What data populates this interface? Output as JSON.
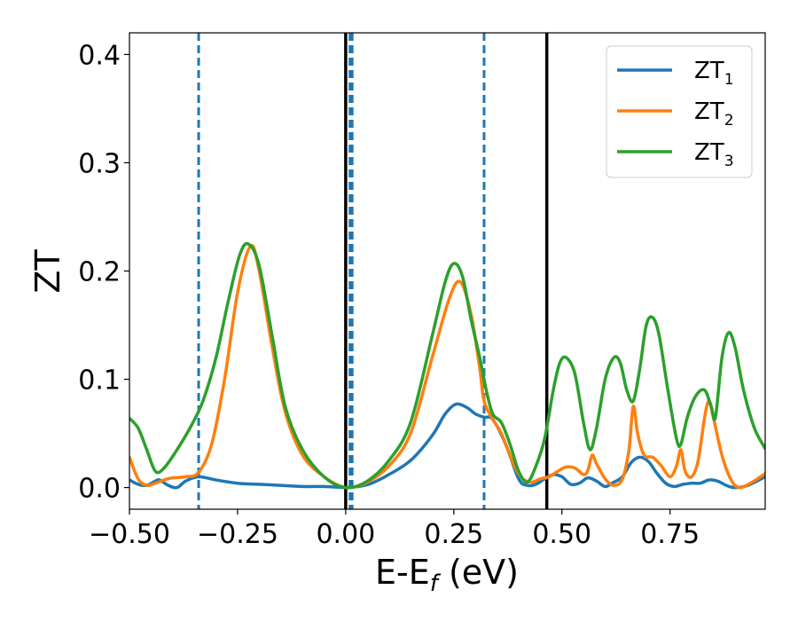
{
  "chart_data": {
    "type": "line",
    "xlabel": "E-E",
    "xlabel_sub": "f",
    "xlabel_unit": " (eV)",
    "ylabel": "ZT",
    "xlim": [
      -0.5,
      0.97
    ],
    "ylim": [
      -0.02,
      0.42
    ],
    "x_ticks": [
      -0.5,
      -0.25,
      0.0,
      0.25,
      0.5,
      0.75
    ],
    "x_tick_labels": [
      "−0.50",
      "−0.25",
      "0.00",
      "0.25",
      "0.50",
      "0.75"
    ],
    "y_ticks": [
      0.0,
      0.1,
      0.2,
      0.3,
      0.4
    ],
    "y_tick_labels": [
      "0.0",
      "0.1",
      "0.2",
      "0.3",
      "0.4"
    ],
    "legend_position": "top-right",
    "grid": false,
    "vlines_dashed": {
      "color": "#1f77b4",
      "x": [
        -0.34,
        0.01,
        0.015,
        0.32
      ]
    },
    "vlines_solid": {
      "color": "#000000",
      "x": [
        0.0,
        0.465
      ]
    },
    "series": [
      {
        "name": "ZT",
        "name_sub": "1",
        "color": "#1f77b4",
        "points": [
          [
            -0.5,
            0.007
          ],
          [
            -0.48,
            0.003
          ],
          [
            -0.46,
            0.002
          ],
          [
            -0.44,
            0.006
          ],
          [
            -0.43,
            0.007
          ],
          [
            -0.41,
            0.002
          ],
          [
            -0.39,
            0.0
          ],
          [
            -0.37,
            0.006
          ],
          [
            -0.34,
            0.01
          ],
          [
            -0.3,
            0.007
          ],
          [
            -0.25,
            0.004
          ],
          [
            -0.2,
            0.003
          ],
          [
            -0.15,
            0.002
          ],
          [
            -0.1,
            0.001
          ],
          [
            -0.05,
            0.001
          ],
          [
            0.0,
            0.0
          ],
          [
            0.03,
            0.001
          ],
          [
            0.06,
            0.004
          ],
          [
            0.1,
            0.012
          ],
          [
            0.15,
            0.025
          ],
          [
            0.2,
            0.048
          ],
          [
            0.23,
            0.068
          ],
          [
            0.255,
            0.077
          ],
          [
            0.28,
            0.074
          ],
          [
            0.3,
            0.068
          ],
          [
            0.32,
            0.065
          ],
          [
            0.34,
            0.063
          ],
          [
            0.37,
            0.04
          ],
          [
            0.4,
            0.008
          ],
          [
            0.42,
            0.002
          ],
          [
            0.44,
            0.003
          ],
          [
            0.46,
            0.008
          ],
          [
            0.48,
            0.012
          ],
          [
            0.5,
            0.01
          ],
          [
            0.52,
            0.003
          ],
          [
            0.54,
            0.004
          ],
          [
            0.56,
            0.009
          ],
          [
            0.58,
            0.006
          ],
          [
            0.6,
            0.001
          ],
          [
            0.62,
            0.005
          ],
          [
            0.64,
            0.01
          ],
          [
            0.66,
            0.023
          ],
          [
            0.68,
            0.028
          ],
          [
            0.7,
            0.024
          ],
          [
            0.72,
            0.013
          ],
          [
            0.74,
            0.004
          ],
          [
            0.76,
            0.001
          ],
          [
            0.78,
            0.003
          ],
          [
            0.8,
            0.004
          ],
          [
            0.82,
            0.004
          ],
          [
            0.84,
            0.007
          ],
          [
            0.86,
            0.006
          ],
          [
            0.88,
            0.002
          ],
          [
            0.9,
            0.0
          ],
          [
            0.93,
            0.002
          ],
          [
            0.97,
            0.01
          ]
        ]
      },
      {
        "name": "ZT",
        "name_sub": "2",
        "color": "#ff7f0e",
        "points": [
          [
            -0.5,
            0.028
          ],
          [
            -0.48,
            0.008
          ],
          [
            -0.46,
            0.002
          ],
          [
            -0.44,
            0.004
          ],
          [
            -0.42,
            0.007
          ],
          [
            -0.4,
            0.009
          ],
          [
            -0.37,
            0.01
          ],
          [
            -0.34,
            0.014
          ],
          [
            -0.31,
            0.04
          ],
          [
            -0.28,
            0.1
          ],
          [
            -0.25,
            0.18
          ],
          [
            -0.22,
            0.223
          ],
          [
            -0.2,
            0.2
          ],
          [
            -0.17,
            0.13
          ],
          [
            -0.14,
            0.07
          ],
          [
            -0.1,
            0.03
          ],
          [
            -0.05,
            0.01
          ],
          [
            0.0,
            0.0
          ],
          [
            0.05,
            0.005
          ],
          [
            0.1,
            0.02
          ],
          [
            0.15,
            0.05
          ],
          [
            0.2,
            0.12
          ],
          [
            0.24,
            0.175
          ],
          [
            0.265,
            0.19
          ],
          [
            0.29,
            0.16
          ],
          [
            0.31,
            0.11
          ],
          [
            0.32,
            0.08
          ],
          [
            0.34,
            0.063
          ],
          [
            0.36,
            0.05
          ],
          [
            0.39,
            0.02
          ],
          [
            0.41,
            0.008
          ],
          [
            0.43,
            0.005
          ],
          [
            0.45,
            0.008
          ],
          [
            0.47,
            0.01
          ],
          [
            0.49,
            0.015
          ],
          [
            0.51,
            0.019
          ],
          [
            0.53,
            0.018
          ],
          [
            0.55,
            0.012
          ],
          [
            0.56,
            0.016
          ],
          [
            0.57,
            0.03
          ],
          [
            0.58,
            0.022
          ],
          [
            0.6,
            0.008
          ],
          [
            0.62,
            0.002
          ],
          [
            0.64,
            0.008
          ],
          [
            0.655,
            0.035
          ],
          [
            0.665,
            0.075
          ],
          [
            0.675,
            0.05
          ],
          [
            0.69,
            0.03
          ],
          [
            0.71,
            0.028
          ],
          [
            0.73,
            0.02
          ],
          [
            0.75,
            0.01
          ],
          [
            0.765,
            0.02
          ],
          [
            0.775,
            0.035
          ],
          [
            0.785,
            0.015
          ],
          [
            0.8,
            0.01
          ],
          [
            0.815,
            0.025
          ],
          [
            0.83,
            0.065
          ],
          [
            0.84,
            0.08
          ],
          [
            0.85,
            0.065
          ],
          [
            0.87,
            0.03
          ],
          [
            0.89,
            0.008
          ],
          [
            0.91,
            0.0
          ],
          [
            0.94,
            0.005
          ],
          [
            0.97,
            0.013
          ]
        ]
      },
      {
        "name": "ZT",
        "name_sub": "3",
        "color": "#2ca02c",
        "points": [
          [
            -0.5,
            0.064
          ],
          [
            -0.48,
            0.055
          ],
          [
            -0.46,
            0.035
          ],
          [
            -0.44,
            0.015
          ],
          [
            -0.42,
            0.018
          ],
          [
            -0.39,
            0.035
          ],
          [
            -0.36,
            0.055
          ],
          [
            -0.33,
            0.08
          ],
          [
            -0.3,
            0.12
          ],
          [
            -0.27,
            0.175
          ],
          [
            -0.245,
            0.215
          ],
          [
            -0.225,
            0.225
          ],
          [
            -0.2,
            0.205
          ],
          [
            -0.17,
            0.14
          ],
          [
            -0.14,
            0.075
          ],
          [
            -0.1,
            0.035
          ],
          [
            -0.05,
            0.01
          ],
          [
            0.0,
            0.0
          ],
          [
            0.05,
            0.006
          ],
          [
            0.1,
            0.025
          ],
          [
            0.15,
            0.06
          ],
          [
            0.2,
            0.14
          ],
          [
            0.23,
            0.19
          ],
          [
            0.25,
            0.207
          ],
          [
            0.27,
            0.195
          ],
          [
            0.29,
            0.155
          ],
          [
            0.31,
            0.12
          ],
          [
            0.325,
            0.09
          ],
          [
            0.34,
            0.068
          ],
          [
            0.36,
            0.06
          ],
          [
            0.38,
            0.04
          ],
          [
            0.4,
            0.015
          ],
          [
            0.42,
            0.005
          ],
          [
            0.44,
            0.02
          ],
          [
            0.46,
            0.045
          ],
          [
            0.48,
            0.09
          ],
          [
            0.495,
            0.115
          ],
          [
            0.51,
            0.12
          ],
          [
            0.53,
            0.105
          ],
          [
            0.55,
            0.06
          ],
          [
            0.565,
            0.035
          ],
          [
            0.58,
            0.055
          ],
          [
            0.6,
            0.1
          ],
          [
            0.62,
            0.12
          ],
          [
            0.635,
            0.115
          ],
          [
            0.65,
            0.09
          ],
          [
            0.665,
            0.08
          ],
          [
            0.68,
            0.11
          ],
          [
            0.695,
            0.15
          ],
          [
            0.71,
            0.157
          ],
          [
            0.725,
            0.14
          ],
          [
            0.745,
            0.09
          ],
          [
            0.765,
            0.045
          ],
          [
            0.775,
            0.04
          ],
          [
            0.79,
            0.065
          ],
          [
            0.81,
            0.085
          ],
          [
            0.83,
            0.09
          ],
          [
            0.845,
            0.075
          ],
          [
            0.855,
            0.065
          ],
          [
            0.87,
            0.12
          ],
          [
            0.885,
            0.143
          ],
          [
            0.9,
            0.13
          ],
          [
            0.92,
            0.09
          ],
          [
            0.945,
            0.055
          ],
          [
            0.97,
            0.036
          ]
        ]
      }
    ]
  }
}
